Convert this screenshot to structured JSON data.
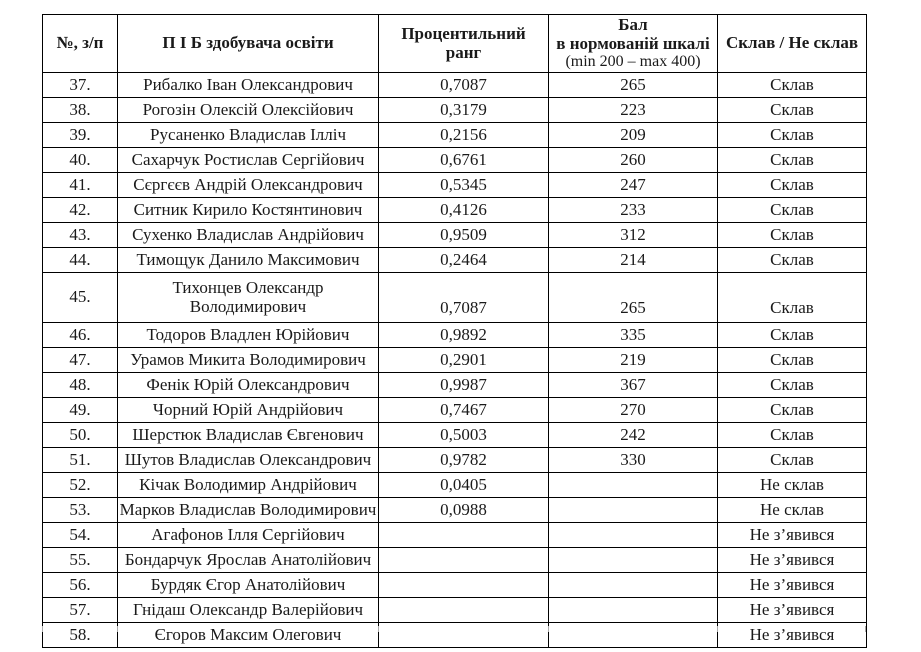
{
  "table": {
    "headers": {
      "num": "№, з/п",
      "name": "П І Б здобувача освіти",
      "rank_line1": "Процентильний",
      "rank_line2": "ранг",
      "score_line1": "Бал",
      "score_line2": "в нормованій шкалі",
      "score_line3": "(min 200 – max 400)",
      "result": "Склав / Не склав"
    },
    "rows": [
      {
        "num": "37.",
        "name": "Рибалко Іван Олександрович",
        "rank": "0,7087",
        "score": "265",
        "result": "Склав"
      },
      {
        "num": "38.",
        "name": "Рогозін Олексій Олексійович",
        "rank": "0,3179",
        "score": "223",
        "result": "Склав"
      },
      {
        "num": "39.",
        "name": "Русаненко Владислав Ілліч",
        "rank": "0,2156",
        "score": "209",
        "result": "Склав"
      },
      {
        "num": "40.",
        "name": "Сахарчук Ростислав Сергійович",
        "rank": "0,6761",
        "score": "260",
        "result": "Склав"
      },
      {
        "num": "41.",
        "name": "Сєргєєв Андрій Олександрович",
        "rank": "0,5345",
        "score": "247",
        "result": "Склав"
      },
      {
        "num": "42.",
        "name": "Ситник Кирило Костянтинович",
        "rank": "0,4126",
        "score": "233",
        "result": "Склав"
      },
      {
        "num": "43.",
        "name": "Сухенко Владислав Андрійович",
        "rank": "0,9509",
        "score": "312",
        "result": "Склав"
      },
      {
        "num": "44.",
        "name": "Тимощук Данило Максимович",
        "rank": "0,2464",
        "score": "214",
        "result": "Склав"
      },
      {
        "num": "45.",
        "name": "Тихонцев Олександр",
        "name2": "Володимирович",
        "tall": true,
        "rank": "0,7087",
        "score": "265",
        "result": "Склав"
      },
      {
        "num": "46.",
        "name": "Тодоров Владлен Юрійович",
        "rank": "0,9892",
        "score": "335",
        "result": "Склав"
      },
      {
        "num": "47.",
        "name": "Урамов Микита Володимирович",
        "rank": "0,2901",
        "score": "219",
        "result": "Склав"
      },
      {
        "num": "48.",
        "name": "Фенік Юрій Олександрович",
        "rank": "0,9987",
        "score": "367",
        "result": "Склав"
      },
      {
        "num": "49.",
        "name": "Чорний Юрій Андрійович",
        "rank": "0,7467",
        "score": "270",
        "result": "Склав"
      },
      {
        "num": "50.",
        "name": "Шерстюк Владислав Євгенович",
        "rank": "0,5003",
        "score": "242",
        "result": "Склав"
      },
      {
        "num": "51.",
        "name": "Шутов Владислав Олександрович",
        "rank": "0,9782",
        "score": "330",
        "result": "Склав"
      },
      {
        "num": "52.",
        "name": "Кічак Володимир Андрійович",
        "rank": "0,0405",
        "score": "",
        "result": "Не склав"
      },
      {
        "num": "53.",
        "name": "Марков Владислав Володимирович",
        "rank": "0,0988",
        "score": "",
        "result": "Не склав"
      },
      {
        "num": "54.",
        "name": "Агафонов Ілля Сергійович",
        "rank": "",
        "score": "",
        "result": "Не з’явився"
      },
      {
        "num": "55.",
        "name": "Бондарчук Ярослав Анатолійович",
        "rank": "",
        "score": "",
        "result": "Не з’явився"
      },
      {
        "num": "56.",
        "name": "Бурдяк Єгор Анатолійович",
        "rank": "",
        "score": "",
        "result": "Не з’явився"
      },
      {
        "num": "57.",
        "name": "Гнідаш Олександр Валерійович",
        "rank": "",
        "score": "",
        "result": "Не з’явився"
      },
      {
        "num": "58.",
        "name": "Єгоров Максим Олегович",
        "rank": "",
        "score": "",
        "result": "Не з’явився"
      }
    ]
  }
}
